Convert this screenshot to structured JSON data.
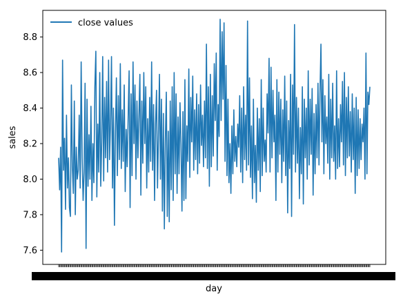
{
  "chart_data": {
    "type": "line",
    "title": "",
    "xlabel": "day",
    "ylabel": "sales",
    "ylim": [
      7.52,
      8.95
    ],
    "yticks": [
      7.6,
      7.8,
      8.0,
      8.2,
      8.4,
      8.6,
      8.8
    ],
    "ytick_labels": [
      "7.6",
      "7.8",
      "8.0",
      "8.2",
      "8.4",
      "8.6",
      "8.8"
    ],
    "legend": {
      "position": "top-left",
      "entries": [
        "close values"
      ]
    },
    "grid": false,
    "series": [
      {
        "name": "close values",
        "color": "#1f77b4",
        "values": [
          8.12,
          7.94,
          8.18,
          7.59,
          8.67,
          8.05,
          8.23,
          7.83,
          8.36,
          7.95,
          8.12,
          7.84,
          7.79,
          8.53,
          8.07,
          7.92,
          8.44,
          7.8,
          8.18,
          8.0,
          8.05,
          8.36,
          7.95,
          8.66,
          8.12,
          7.88,
          8.04,
          8.54,
          7.61,
          8.45,
          7.96,
          8.25,
          8.0,
          8.41,
          7.88,
          8.2,
          7.98,
          8.52,
          8.72,
          7.9,
          8.31,
          8.04,
          8.6,
          7.96,
          8.21,
          8.69,
          7.99,
          8.46,
          8.12,
          8.55,
          8.04,
          8.67,
          8.11,
          8.32,
          8.69,
          7.95,
          8.4,
          7.74,
          8.26,
          8.57,
          8.02,
          8.47,
          8.11,
          8.65,
          8.06,
          8.39,
          8.1,
          8.53,
          7.93,
          8.28,
          8.07,
          8.34,
          8.61,
          7.84,
          8.48,
          8.02,
          8.66,
          8.2,
          8.53,
          8.0,
          8.44,
          8.12,
          8.35,
          8.59,
          7.91,
          8.44,
          8.09,
          8.6,
          8.2,
          8.52,
          7.95,
          8.34,
          8.04,
          8.46,
          8.1,
          8.66,
          8.05,
          8.42,
          7.88,
          8.31,
          8.5,
          7.95,
          8.25,
          8.59,
          8.0,
          8.45,
          7.82,
          8.37,
          7.72,
          8.21,
          8.49,
          7.79,
          8.27,
          7.76,
          8.44,
          7.94,
          8.52,
          7.88,
          8.6,
          8.03,
          8.48,
          7.92,
          8.35,
          8.03,
          8.43,
          8.2,
          7.82,
          8.38,
          7.88,
          8.56,
          7.89,
          8.3,
          8.1,
          8.62,
          8.01,
          8.46,
          8.21,
          8.58,
          8.05,
          8.39,
          8.11,
          8.48,
          8.03,
          8.42,
          8.09,
          8.53,
          8.19,
          8.36,
          8.07,
          8.44,
          8.12,
          8.76,
          8.06,
          8.52,
          7.96,
          8.59,
          8.07,
          8.47,
          8.13,
          8.65,
          8.33,
          8.71,
          8.05,
          8.42,
          8.24,
          8.9,
          8.33,
          8.83,
          8.45,
          8.88,
          8.1,
          8.64,
          8.02,
          8.45,
          7.98,
          8.2,
          7.92,
          8.3,
          8.03,
          8.39,
          8.1,
          8.24,
          8.07,
          8.31,
          8.18,
          8.47,
          8.04,
          8.4,
          7.98,
          8.52,
          8.11,
          8.36,
          8.05,
          8.89,
          8.08,
          8.57,
          8.01,
          8.3,
          7.89,
          8.45,
          7.98,
          8.19,
          7.87,
          8.4,
          8.05,
          8.34,
          7.93,
          8.56,
          8.02,
          8.4,
          8.1,
          8.22,
          8.04,
          8.48,
          8.26,
          8.68,
          8.04,
          8.63,
          8.12,
          8.5,
          8.21,
          8.36,
          7.88,
          8.56,
          8.04,
          8.49,
          8.14,
          8.45,
          7.98,
          8.39,
          8.1,
          8.58,
          8.02,
          8.44,
          7.81,
          8.33,
          8.06,
          8.59,
          7.79,
          8.53,
          8.14,
          8.87,
          8.04,
          8.46,
          8.09,
          8.4,
          7.89,
          8.29,
          8.03,
          8.52,
          7.86,
          8.45,
          8.12,
          8.4,
          8.0,
          8.61,
          8.08,
          8.45,
          8.14,
          8.51,
          7.91,
          8.37,
          8.03,
          8.42,
          8.12,
          8.54,
          8.08,
          8.48,
          8.76,
          8.21,
          8.56,
          8.03,
          8.47,
          8.2,
          8.35,
          8.09,
          8.59,
          8.0,
          8.45,
          8.12,
          8.54,
          8.1,
          8.3,
          8.0,
          8.61,
          8.06,
          8.34,
          8.07,
          8.42,
          8.21,
          8.55,
          8.08,
          8.6,
          8.02,
          8.46,
          8.12,
          8.52,
          8.13,
          8.38,
          8.04,
          8.48,
          8.11,
          8.4,
          7.92,
          8.46,
          8.02,
          8.39,
          8.06,
          8.34,
          8.11,
          8.31,
          8.21,
          8.4,
          8.0,
          8.71,
          8.03,
          8.49,
          8.42,
          8.52
        ]
      }
    ],
    "x_tick_count": 310
  }
}
